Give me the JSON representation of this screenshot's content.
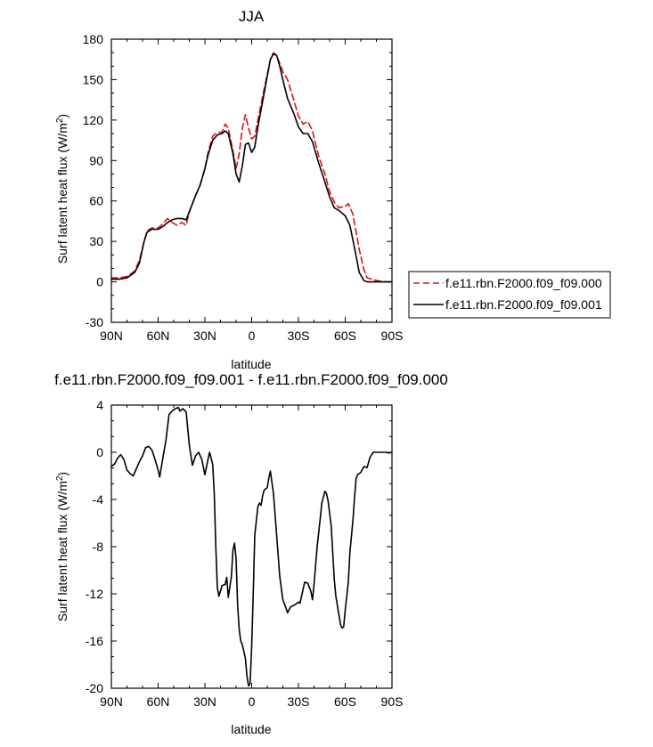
{
  "chart_data": [
    {
      "type": "line",
      "title": "JJA",
      "xlabel": "latitude",
      "ylabel_main": "Surf latent heat flux (W/m",
      "ylabel_sup": "2",
      "ylabel_end": ")",
      "xlim": [
        90,
        -90
      ],
      "ylim": [
        -30,
        180
      ],
      "xticks": [
        90,
        60,
        30,
        0,
        -30,
        -60,
        -90
      ],
      "xticklabels": [
        "90N",
        "60N",
        "30N",
        "0",
        "30S",
        "60S",
        "90S"
      ],
      "yticks": [
        -30,
        0,
        30,
        60,
        90,
        120,
        150,
        180
      ],
      "yticklabels": [
        "-30",
        "0",
        "30",
        "60",
        "90",
        "120",
        "150",
        "180"
      ],
      "legend_position": "right",
      "series": [
        {
          "name": "f.e11.rbn.F2000.f09_f09.000",
          "color": "#dd1111",
          "dash": true,
          "points": [
            [
              90,
              3
            ],
            [
              85,
              3
            ],
            [
              80,
              4
            ],
            [
              75,
              8
            ],
            [
              72,
              16
            ],
            [
              69,
              30
            ],
            [
              67,
              38
            ],
            [
              64,
              40
            ],
            [
              60,
              40
            ],
            [
              57,
              43
            ],
            [
              54,
              47
            ],
            [
              51,
              44
            ],
            [
              48,
              42
            ],
            [
              45,
              44
            ],
            [
              42,
              42
            ],
            [
              40,
              52
            ],
            [
              36,
              64
            ],
            [
              33,
              72
            ],
            [
              30,
              84
            ],
            [
              28,
              96
            ],
            [
              25,
              108
            ],
            [
              22,
              111
            ],
            [
              19,
              111
            ],
            [
              17,
              117
            ],
            [
              15,
              114
            ],
            [
              12,
              97
            ],
            [
              10,
              84
            ],
            [
              8,
              95
            ],
            [
              6,
              114
            ],
            [
              4,
              124
            ],
            [
              2,
              114
            ],
            [
              0,
              106
            ],
            [
              -2,
              108
            ],
            [
              -4,
              120
            ],
            [
              -8,
              143
            ],
            [
              -12,
              165
            ],
            [
              -14,
              170
            ],
            [
              -16,
              168
            ],
            [
              -18,
              162
            ],
            [
              -20,
              156
            ],
            [
              -23,
              150
            ],
            [
              -27,
              135
            ],
            [
              -30,
              123
            ],
            [
              -33,
              117
            ],
            [
              -36,
              119
            ],
            [
              -39,
              112
            ],
            [
              -43,
              93
            ],
            [
              -47,
              80
            ],
            [
              -50,
              67
            ],
            [
              -53,
              59
            ],
            [
              -56,
              55
            ],
            [
              -60,
              56
            ],
            [
              -62,
              58
            ],
            [
              -65,
              50
            ],
            [
              -69,
              24
            ],
            [
              -72,
              9
            ],
            [
              -74,
              3
            ],
            [
              -77,
              2
            ],
            [
              -80,
              1
            ],
            [
              -85,
              0
            ],
            [
              -90,
              0
            ]
          ]
        },
        {
          "name": "f.e11.rbn.F2000.f09_f09.001",
          "color": "#000000",
          "dash": false,
          "points": [
            [
              90,
              2
            ],
            [
              85,
              2
            ],
            [
              80,
              3
            ],
            [
              75,
              7
            ],
            [
              72,
              14
            ],
            [
              69,
              30
            ],
            [
              67,
              37
            ],
            [
              64,
              39
            ],
            [
              60,
              39
            ],
            [
              57,
              41
            ],
            [
              54,
              44
            ],
            [
              51,
              46
            ],
            [
              48,
              47
            ],
            [
              45,
              47
            ],
            [
              42,
              46
            ],
            [
              40,
              52
            ],
            [
              36,
              64
            ],
            [
              33,
              72
            ],
            [
              30,
              84
            ],
            [
              28,
              94
            ],
            [
              25,
              105
            ],
            [
              22,
              109
            ],
            [
              19,
              110
            ],
            [
              17,
              112
            ],
            [
              15,
              110
            ],
            [
              12,
              95
            ],
            [
              10,
              80
            ],
            [
              8,
              74
            ],
            [
              6,
              86
            ],
            [
              4,
              102
            ],
            [
              2,
              103
            ],
            [
              0,
              96
            ],
            [
              -2,
              100
            ],
            [
              -4,
              115
            ],
            [
              -8,
              140
            ],
            [
              -12,
              165
            ],
            [
              -14,
              169
            ],
            [
              -16,
              168
            ],
            [
              -18,
              160
            ],
            [
              -20,
              150
            ],
            [
              -23,
              136
            ],
            [
              -27,
              125
            ],
            [
              -30,
              115
            ],
            [
              -33,
              110
            ],
            [
              -36,
              110
            ],
            [
              -39,
              104
            ],
            [
              -43,
              88
            ],
            [
              -47,
              74
            ],
            [
              -50,
              63
            ],
            [
              -53,
              55
            ],
            [
              -56,
              53
            ],
            [
              -60,
              49
            ],
            [
              -63,
              42
            ],
            [
              -66,
              25
            ],
            [
              -69,
              7
            ],
            [
              -72,
              1
            ],
            [
              -74,
              0
            ],
            [
              -77,
              0
            ],
            [
              -80,
              0
            ],
            [
              -85,
              0
            ],
            [
              -90,
              0
            ]
          ]
        }
      ]
    },
    {
      "type": "line",
      "title": "f.e11.rbn.F2000.f09_f09.001 - f.e11.rbn.F2000.f09_f09.000",
      "xlabel": "latitude",
      "ylabel_main": "Surf latent heat flux (W/m",
      "ylabel_sup": "2",
      "ylabel_end": ")",
      "xlim": [
        90,
        -90
      ],
      "ylim": [
        -20,
        4
      ],
      "xticks": [
        90,
        60,
        30,
        0,
        -30,
        -60,
        -90
      ],
      "xticklabels": [
        "90N",
        "60N",
        "30N",
        "0",
        "30S",
        "60S",
        "90S"
      ],
      "yticks": [
        -20,
        -16,
        -12,
        -8,
        -4,
        0,
        4
      ],
      "yticklabels": [
        "-20",
        "-16",
        "-12",
        "-8",
        "-4",
        "0",
        "4"
      ],
      "series": [
        {
          "name": "",
          "color": "#000000",
          "dash": false,
          "points": [
            [
              90,
              -1.2
            ],
            [
              88,
              -1
            ],
            [
              86,
              -0.5
            ],
            [
              84,
              -0.2
            ],
            [
              82,
              -0.6
            ],
            [
              80,
              -1.5
            ],
            [
              78,
              -1.8
            ],
            [
              76,
              -2
            ],
            [
              74,
              -1.4
            ],
            [
              72,
              -0.8
            ],
            [
              70,
              -0.3
            ],
            [
              68,
              0.4
            ],
            [
              66,
              0.5
            ],
            [
              64,
              0.2
            ],
            [
              62,
              -0.6
            ],
            [
              60,
              -1.5
            ],
            [
              59,
              -2.1
            ],
            [
              57,
              -0.5
            ],
            [
              55,
              1
            ],
            [
              53,
              3.2
            ],
            [
              51,
              3.5
            ],
            [
              49,
              3.7
            ],
            [
              47,
              3.8
            ],
            [
              46,
              3.5
            ],
            [
              44,
              3.7
            ],
            [
              42,
              3.4
            ],
            [
              41,
              2
            ],
            [
              40,
              0.6
            ],
            [
              38,
              -1.1
            ],
            [
              36,
              -0.3
            ],
            [
              34,
              0
            ],
            [
              32,
              -0.6
            ],
            [
              30,
              -1.9
            ],
            [
              28,
              -0.6
            ],
            [
              27,
              0
            ],
            [
              25,
              -1
            ],
            [
              24,
              -3.5
            ],
            [
              23,
              -8
            ],
            [
              22,
              -11.5
            ],
            [
              21,
              -12.2
            ],
            [
              19,
              -11.3
            ],
            [
              17,
              -11.2
            ],
            [
              16,
              -10.6
            ],
            [
              15,
              -12.3
            ],
            [
              13,
              -10.5
            ],
            [
              12,
              -8.3
            ],
            [
              11,
              -7.7
            ],
            [
              10,
              -9
            ],
            [
              9,
              -13
            ],
            [
              8,
              -15
            ],
            [
              7,
              -16
            ],
            [
              6,
              -16.3
            ],
            [
              4,
              -17.5
            ],
            [
              3,
              -19
            ],
            [
              2,
              -19.8
            ],
            [
              1,
              -19.6
            ],
            [
              0,
              -16.5
            ],
            [
              -1,
              -12
            ],
            [
              -2,
              -7
            ],
            [
              -4,
              -4.6
            ],
            [
              -5,
              -4.3
            ],
            [
              -6,
              -4.5
            ],
            [
              -7,
              -3.7
            ],
            [
              -8,
              -3.2
            ],
            [
              -10,
              -3
            ],
            [
              -11,
              -2.2
            ],
            [
              -12,
              -1.6
            ],
            [
              -14,
              -3.5
            ],
            [
              -16,
              -7
            ],
            [
              -18,
              -10.5
            ],
            [
              -20,
              -12.5
            ],
            [
              -22,
              -13.2
            ],
            [
              -23,
              -13.6
            ],
            [
              -25,
              -13.1
            ],
            [
              -28,
              -12.9
            ],
            [
              -30,
              -12.7
            ],
            [
              -31,
              -12.8
            ],
            [
              -32,
              -12.2
            ],
            [
              -34,
              -11
            ],
            [
              -36,
              -11.1
            ],
            [
              -38,
              -11.8
            ],
            [
              -39,
              -12.5
            ],
            [
              -40,
              -11.2
            ],
            [
              -42,
              -8
            ],
            [
              -44,
              -5.6
            ],
            [
              -45,
              -4.3
            ],
            [
              -47,
              -3.3
            ],
            [
              -48,
              -3.5
            ],
            [
              -49,
              -4.1
            ],
            [
              -51,
              -6.2
            ],
            [
              -52,
              -8.5
            ],
            [
              -53,
              -10.8
            ],
            [
              -54,
              -12.2
            ],
            [
              -56,
              -13.8
            ],
            [
              -57,
              -14.6
            ],
            [
              -58,
              -14.9
            ],
            [
              -59,
              -14.8
            ],
            [
              -60,
              -13.4
            ],
            [
              -62,
              -11
            ],
            [
              -63,
              -8.5
            ],
            [
              -65,
              -5.7
            ],
            [
              -66,
              -3.8
            ],
            [
              -67,
              -2.2
            ],
            [
              -68,
              -1.9
            ],
            [
              -70,
              -1.7
            ],
            [
              -72,
              -1.2
            ],
            [
              -74,
              -1.3
            ],
            [
              -76,
              -0.4
            ],
            [
              -78,
              0
            ],
            [
              -80,
              0
            ],
            [
              -82,
              0
            ],
            [
              -84,
              0
            ],
            [
              -86,
              0
            ],
            [
              -88,
              -0.05
            ],
            [
              -90,
              0
            ]
          ]
        }
      ]
    }
  ]
}
